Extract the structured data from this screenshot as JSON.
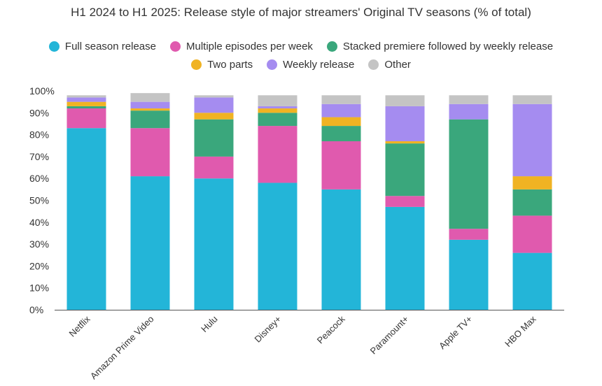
{
  "chart_data": {
    "type": "bar",
    "stacked": true,
    "title": "H1 2024 to H1 2025: Release style of major streamers' Original TV seasons (% of total)",
    "categories": [
      "Netflix",
      "Amazon Prime Video",
      "Hulu",
      "Disney+",
      "Peacock",
      "Paramount+",
      "Apple TV+",
      "HBO Max"
    ],
    "series": [
      {
        "name": "Full season release",
        "color": "#23b5d8",
        "values": [
          83,
          61,
          60,
          58,
          55,
          47,
          32,
          26
        ]
      },
      {
        "name": "Multiple episodes per week",
        "color": "#e05aae",
        "values": [
          9,
          22,
          10,
          26,
          22,
          5,
          5,
          17
        ]
      },
      {
        "name": "Stacked premiere followed by weekly release",
        "color": "#3aa77c",
        "values": [
          1,
          8,
          17,
          6,
          7,
          24,
          50,
          12
        ]
      },
      {
        "name": "Two parts",
        "color": "#f0b323",
        "values": [
          2,
          1,
          3,
          2,
          4,
          1,
          0,
          6
        ]
      },
      {
        "name": "Weekly release",
        "color": "#a58cf0",
        "values": [
          2,
          3,
          7,
          1,
          6,
          16,
          7,
          33
        ]
      },
      {
        "name": "Other",
        "color": "#c4c4c4",
        "values": [
          1,
          4,
          1,
          5,
          4,
          5,
          4,
          4
        ]
      }
    ],
    "yticks": [
      "0%",
      "10%",
      "20%",
      "30%",
      "40%",
      "50%",
      "60%",
      "70%",
      "80%",
      "90%",
      "100%"
    ],
    "ylim": [
      0,
      100
    ],
    "xlabel": "",
    "ylabel": "",
    "legend_position": "top"
  }
}
